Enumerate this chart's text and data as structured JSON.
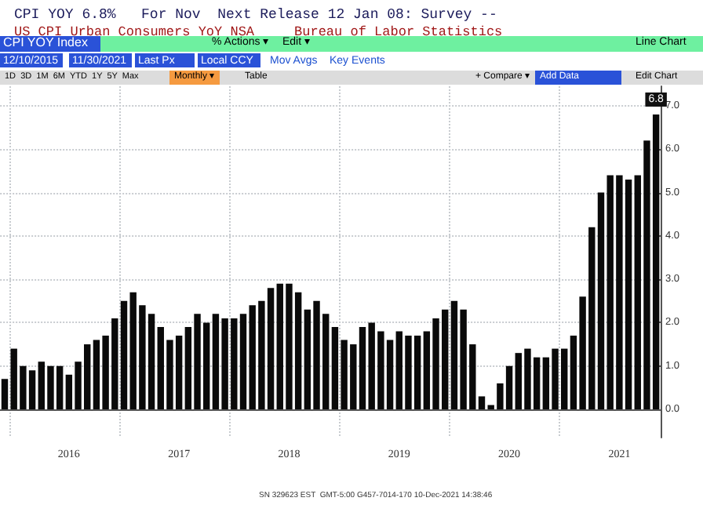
{
  "chart_data": {
    "type": "bar",
    "title": "CPI YOY 6.8%   For Nov  Next Release 12 Jan 08: Survey --",
    "subtitle": "US CPI Urban Consumers YoY NSA     Bureau of Labor Statistics",
    "annotations": [
      "CPI YOY Index",
      "% Actions ▾",
      "Edit ▾",
      "Line Chart",
      "12/10/2015",
      "11/30/2021",
      "Last Px",
      "Local CCY",
      "Mov Avgs",
      "Key Events",
      "1D  3D  1M  6M  YTD  1Y  5Y  Max",
      "Monthly ▾",
      "Table",
      "+ Compare ▾",
      "Add Data",
      "Edit Chart",
      "SN 329623 EST  GMT-5:00 G457-7014-170 10-Dec-2021 14:38:46"
    ],
    "categories": [
      null,
      null,
      null,
      null,
      null,
      null,
      null,
      "2016",
      null,
      null,
      null,
      null,
      null,
      null,
      null,
      null,
      null,
      null,
      null,
      "2017",
      null,
      null,
      null,
      null,
      null,
      null,
      null,
      null,
      null,
      null,
      null,
      "2018",
      null,
      null,
      null,
      null,
      null,
      null,
      null,
      null,
      null,
      null,
      null,
      "2019",
      null,
      null,
      null,
      null,
      null,
      null,
      null,
      null,
      null,
      null,
      null,
      "2020",
      null,
      null,
      null,
      null,
      null,
      null,
      null,
      null,
      null,
      null,
      null,
      "2021",
      null,
      null,
      null,
      null
    ],
    "values": [
      0.7,
      1.4,
      1.0,
      0.9,
      1.1,
      1.0,
      1.0,
      0.8,
      1.1,
      1.5,
      1.6,
      1.7,
      2.1,
      2.5,
      2.7,
      2.4,
      2.2,
      1.9,
      1.6,
      1.7,
      1.9,
      2.2,
      2.0,
      2.2,
      2.1,
      2.1,
      2.2,
      2.4,
      2.5,
      2.8,
      2.9,
      2.9,
      2.7,
      2.3,
      2.5,
      2.2,
      1.9,
      1.6,
      1.5,
      1.9,
      2.0,
      1.8,
      1.6,
      1.8,
      1.7,
      1.7,
      1.8,
      2.1,
      2.3,
      2.5,
      2.3,
      1.5,
      0.3,
      0.1,
      0.6,
      1.0,
      1.3,
      1.4,
      1.2,
      1.2,
      1.4,
      1.4,
      1.7,
      2.6,
      4.2,
      5.0,
      5.4,
      5.4,
      5.3,
      5.4,
      6.2,
      6.8
    ],
    "value_labels": [
      null,
      null,
      null,
      null,
      null,
      null,
      null,
      null,
      null,
      null,
      null,
      null,
      null,
      null,
      null,
      null,
      null,
      null,
      null,
      null,
      null,
      null,
      null,
      null,
      null,
      null,
      null,
      null,
      null,
      null,
      null,
      null,
      null,
      null,
      null,
      null,
      null,
      null,
      null,
      null,
      null,
      null,
      null,
      null,
      null,
      null,
      null,
      null,
      null,
      null,
      null,
      null,
      null,
      null,
      null,
      null,
      null,
      null,
      null,
      null,
      null,
      null,
      null,
      null,
      null,
      null,
      null,
      null,
      null,
      null,
      null,
      "6.8"
    ],
    "color": "#0a0a0a",
    "ylim": [
      -0.65,
      7.45
    ],
    "yticks": [
      {
        "value": 0,
        "label": "0.0"
      },
      {
        "value": 1,
        "label": "1.0"
      },
      {
        "value": 2,
        "label": "2.0"
      },
      {
        "value": 3,
        "label": "3.0"
      },
      {
        "value": 4,
        "label": "4.0"
      },
      {
        "value": 5,
        "label": "5.0"
      },
      {
        "value": 6,
        "label": "6.0"
      },
      {
        "value": 7,
        "label": "7.0"
      }
    ],
    "grid": true
  }
}
